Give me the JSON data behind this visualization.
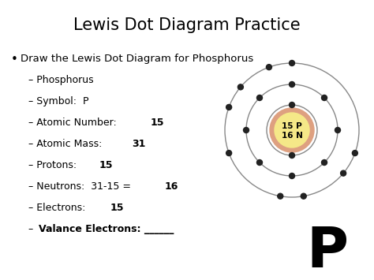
{
  "title": "Lewis Dot Diagram Practice",
  "background_color": "#ffffff",
  "title_fontsize": 15,
  "title_color": "#000000",
  "bullet_text": "Draw the Lewis Dot Diagram for Phosphorus",
  "bullet_fontsize": 9.5,
  "nucleus_color_outer": "#e8a070",
  "nucleus_color_inner": "#f7e080",
  "nucleus_label1": "15 P",
  "nucleus_label2": "16 N",
  "orbit_color": "#888888",
  "electron_color": "#222222",
  "p_symbol": "P",
  "p_symbol_fontsize": 52,
  "sub_items": [
    {
      "normal": "– Phosphorus",
      "bold": ""
    },
    {
      "normal": "– Symbol:  P",
      "bold": ""
    },
    {
      "normal": "– Atomic Number:  ",
      "bold": "15"
    },
    {
      "normal": "– Atomic Mass:  ",
      "bold": "31"
    },
    {
      "normal": "– Protons:  ",
      "bold": "15"
    },
    {
      "normal": "– Neutrons:  31-15 = ",
      "bold": "16"
    },
    {
      "normal": "– Electrons:  ",
      "bold": "15"
    },
    {
      "normal": "– ",
      "bold": "Valance Electrons: ______"
    }
  ]
}
